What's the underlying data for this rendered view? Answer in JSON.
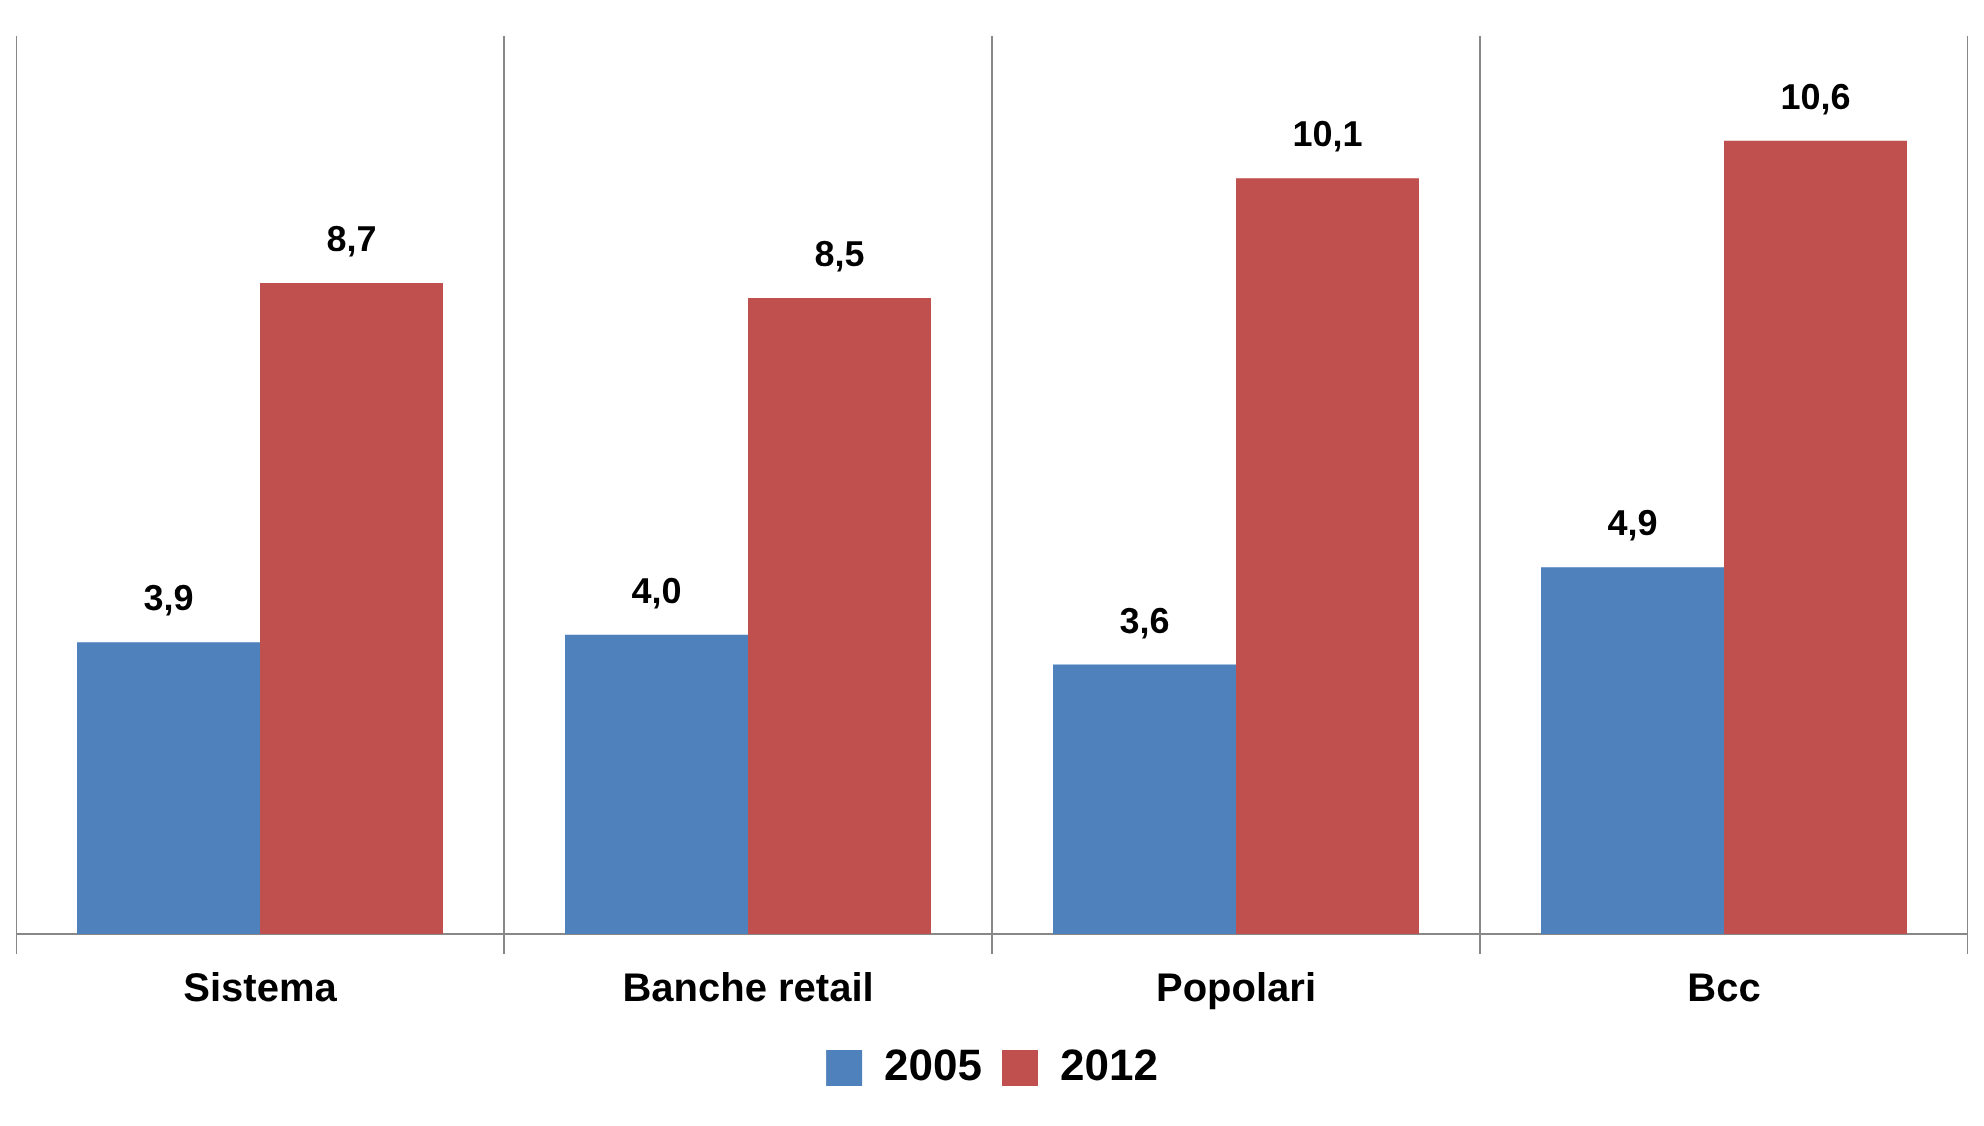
{
  "chart_data": {
    "type": "bar",
    "categories": [
      "Sistema",
      "Banche retail",
      "Popolari",
      "Bcc"
    ],
    "series": [
      {
        "name": "2005",
        "color": "#4f81bd",
        "values": [
          3.9,
          4.0,
          3.6,
          4.9
        ],
        "value_labels": [
          "3,9",
          "4,0",
          "3,6",
          "4,9"
        ]
      },
      {
        "name": "2012",
        "color": "#c0504d",
        "values": [
          8.7,
          8.5,
          10.1,
          10.6
        ],
        "value_labels": [
          "8,7",
          "8,5",
          "10,1",
          "10,6"
        ]
      }
    ],
    "grid": "x",
    "legend": "bottom"
  }
}
